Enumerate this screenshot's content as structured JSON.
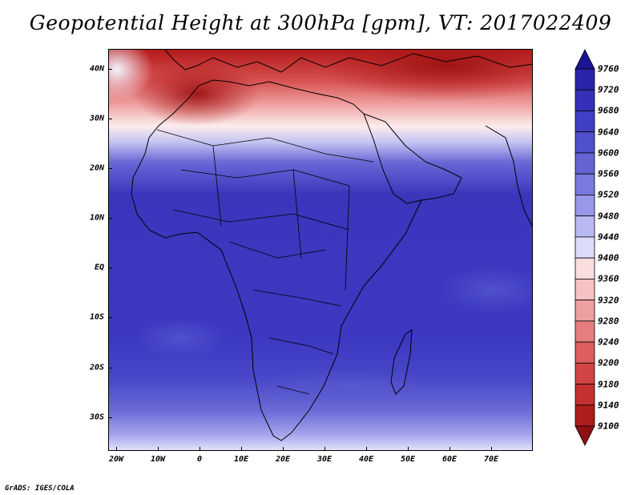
{
  "title": "Geopotential Height at 300hPa [gpm], VT: 2017022409",
  "credit": "GrADS: IGES/COLA",
  "map": {
    "lat_labels": [
      "40N",
      "30N",
      "20N",
      "10N",
      "EQ",
      "10S",
      "20S",
      "30S"
    ],
    "lon_labels": [
      "20W",
      "10W",
      "0",
      "10E",
      "20E",
      "30E",
      "40E",
      "50E",
      "60E",
      "70E"
    ]
  },
  "colorbar": {
    "levels": [
      "9760",
      "9720",
      "9680",
      "9640",
      "9600",
      "9560",
      "9520",
      "9480",
      "9440",
      "9400",
      "9360",
      "9320",
      "9280",
      "9240",
      "9200",
      "9180",
      "9140",
      "9100"
    ],
    "colors": [
      "#1b1496",
      "#2a24a8",
      "#3530b8",
      "#4040c4",
      "#5050cc",
      "#6464d4",
      "#7a7ade",
      "#9898e8",
      "#babaf2",
      "#dcdcfa",
      "#fadede",
      "#f6c2c2",
      "#eea0a0",
      "#e67e7e",
      "#dc5e5e",
      "#d24444",
      "#c43030",
      "#ae1c1c",
      "#8c1010"
    ]
  },
  "colors": {
    "contour_stroke": "#000000"
  }
}
